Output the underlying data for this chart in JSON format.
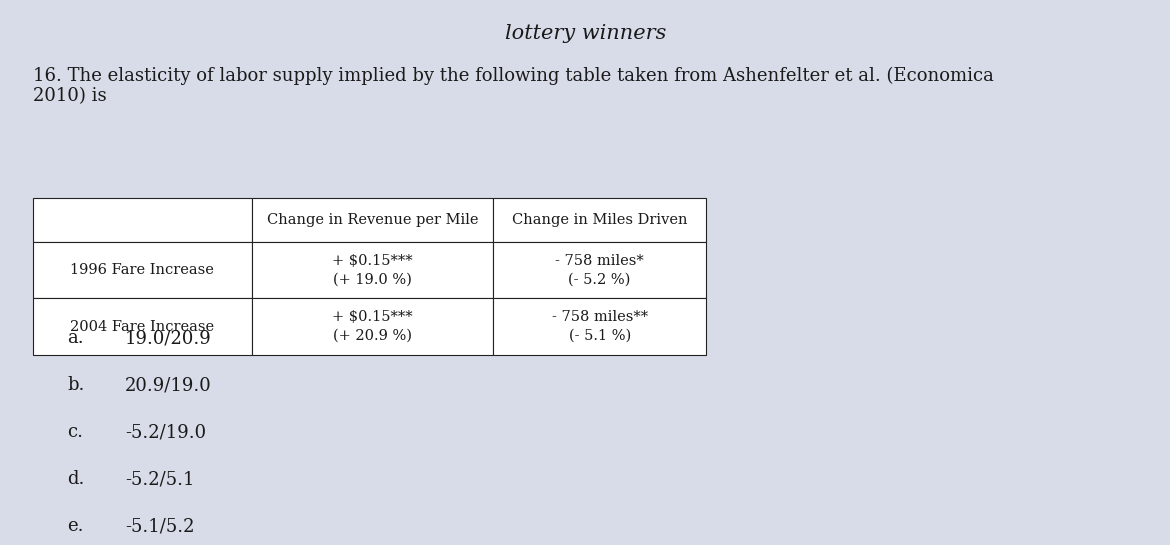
{
  "title_top": "lottery winners",
  "question_number": "16.",
  "question_text": "The elasticity of labor supply implied by the following table taken from Ashenfelter et al. (Economica\n2010) is",
  "table": {
    "col_headers": [
      "",
      "Change in Revenue per Mile",
      "Change in Miles Driven"
    ],
    "rows": [
      [
        "1996 Fare Increase",
        "+ $0.15***\n(+†19.0 %)",
        "− 758 miles*\n(−5.2 %)"
      ],
      [
        "2004 Fare Increase",
        "+ $0.15***\n(+†20.9 %)",
        "− 758 miles**\n(−5.1 %)"
      ]
    ]
  },
  "choices": [
    "a.  19.0/20.9",
    "b.  20.9/19.0",
    "c.  -5.2/19.0",
    "d.  -5.2/5.1",
    "e.  -5.1/5.2"
  ],
  "bg_color": "#d8dce8",
  "text_color": "#1a1a1a",
  "font_size": 13,
  "title_font_size": 15
}
